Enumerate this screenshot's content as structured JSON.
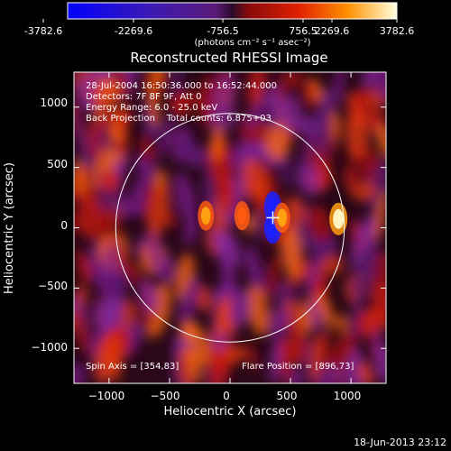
{
  "colorbar": {
    "tick_labels": [
      "-3782.6",
      "-2269.6",
      "-756.5",
      "756.5",
      "2269.6",
      "3782.6"
    ],
    "unit_label": "(photons cm⁻² s⁻¹ asec⁻²)",
    "range": [
      -3782.6,
      3782.6
    ]
  },
  "chart_data": {
    "type": "heatmap",
    "title": "Reconstructed RHESSI Image",
    "xlabel": "Heliocentric X (arcsec)",
    "ylabel": "Heliocentric Y (arcsec)",
    "xlim": [
      -1290,
      1290
    ],
    "ylim": [
      -1290,
      1290
    ],
    "x_ticks": [
      "−1000",
      "−500",
      "0",
      "500",
      "1000"
    ],
    "x_tick_values": [
      -1000,
      -500,
      0,
      500,
      1000
    ],
    "y_ticks": [
      "1000",
      "500",
      "0",
      "−500",
      "−1000"
    ],
    "y_tick_values": [
      1000,
      500,
      0,
      -500,
      -1000
    ],
    "annotations": [
      "28-Jul-2004 16:50:36.000 to 16:52:44.000",
      "Detectors: 7F 8F 9F, Att 0",
      "Energy Range: 6.0 - 25.0 keV",
      "Back Projection    Total counts: 6.875+03"
    ],
    "spin_axis": "Spin Axis = [354,83]",
    "flare_position": "Flare Position = [896,73]",
    "solar_limb_radius_arcsec": 945,
    "cross_marker_arcsec": [
      354,
      83
    ],
    "sources": [
      {
        "x": 896,
        "y": 73,
        "value": 3782.6,
        "label": "flare"
      },
      {
        "x": 354,
        "y": 170,
        "value": -3500,
        "label": "negative lobe"
      },
      {
        "x": 354,
        "y": 0,
        "value": -3500,
        "label": "negative lobe"
      },
      {
        "x": 430,
        "y": 83,
        "value": 2600
      },
      {
        "x": -200,
        "y": 100,
        "value": 2400
      },
      {
        "x": 100,
        "y": 100,
        "value": 2000
      }
    ]
  },
  "footer": {
    "timestamp": "18-Jun-2013 23:12"
  }
}
